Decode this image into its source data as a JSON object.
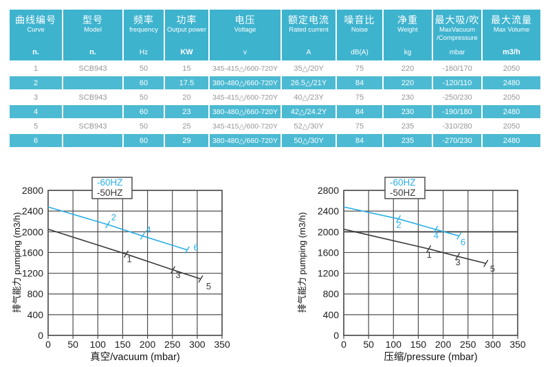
{
  "colors": {
    "table_header": "#3eb3ce",
    "table_row_cyan": "#4cbad2",
    "table_gray_text": "#969696",
    "chart_cyan": "#2aaee6",
    "chart_dark": "#3a3a3a",
    "grid": "#4d4d4d",
    "tick_text": "#1c1c1c"
  },
  "table": {
    "columns": [
      {
        "zh": "曲线编号",
        "en": "Curve",
        "unit": "n."
      },
      {
        "zh": "型号",
        "en": "Model",
        "unit": "n."
      },
      {
        "zh": "频率",
        "en": "frequency",
        "unit": "Hz"
      },
      {
        "zh": "功率",
        "en": "Output power",
        "unit": "KW"
      },
      {
        "zh": "电压",
        "en": "Voltage",
        "unit": "v"
      },
      {
        "zh": "额定电流",
        "en": "Rated current",
        "unit": "A"
      },
      {
        "zh": "噪音比",
        "en": "Noise",
        "unit": "dB(A)"
      },
      {
        "zh": "净重",
        "en": "Weight",
        "unit": "kg"
      },
      {
        "zh": "最大吸/吹",
        "en": "MaxVacuum",
        "en2": "/Compressure",
        "unit": "mbar"
      },
      {
        "zh": "最大流量",
        "en": "Max Volume",
        "unit": "m3/h"
      }
    ],
    "rows": [
      [
        "1",
        "SCB943",
        "50",
        "15",
        "345-415△/600-720Y",
        "35△/20Y",
        "75",
        "220",
        "-160/170",
        "2050"
      ],
      [
        "2",
        "",
        "60",
        "17.5",
        "380-480△/660-720Y",
        "26.5△/21Y",
        "84",
        "220",
        "-120/110",
        "2480"
      ],
      [
        "3",
        "SCB943",
        "50",
        "20",
        "345-415△/600-720Y",
        "40△/23Y",
        "75",
        "230",
        "-250/230",
        "2050"
      ],
      [
        "4",
        "",
        "60",
        "23",
        "380-480△/660-720Y",
        "42△/24.2Y",
        "84",
        "230",
        "-190/180",
        "2480"
      ],
      [
        "5",
        "SCB943",
        "50",
        "25",
        "345-415△/600-720Y",
        "52△/30Y",
        "75",
        "235",
        "-310/280",
        "2050"
      ],
      [
        "6",
        "",
        "60",
        "29",
        "380-480△/660-720Y",
        "50△/30Y",
        "84",
        "235",
        "-270/230",
        "2480"
      ]
    ]
  },
  "chart_data": [
    {
      "type": "line",
      "name": "vacuum-curve-chart",
      "xlabel": "真空/vacuum (mbar)",
      "ylabel": "排气能力 pumping (m3/h)",
      "xlim": [
        0,
        350
      ],
      "xstep": 50,
      "ylim": [
        0,
        2800
      ],
      "ystep": 400,
      "grid": true,
      "legend": [
        {
          "label": "-60HZ",
          "color_key": "chart_cyan"
        },
        {
          "label": "-50HZ",
          "color_key": "chart_dark"
        }
      ],
      "series": [
        {
          "name": "60HZ",
          "color_key": "chart_cyan",
          "points": [
            [
              0,
              2480
            ],
            [
              120,
              2140
            ],
            [
              190,
              1920
            ],
            [
              280,
              1650
            ]
          ],
          "point_labels": [
            "",
            "2",
            "4",
            "6"
          ]
        },
        {
          "name": "50HZ",
          "color_key": "chart_dark",
          "points": [
            [
              0,
              2050
            ],
            [
              157,
              1570
            ],
            [
              251,
              1265
            ],
            [
              307,
              1090
            ]
          ],
          "point_labels": [
            "",
            "1",
            "3",
            "5"
          ]
        }
      ]
    },
    {
      "type": "line",
      "name": "pressure-curve-chart",
      "xlabel": "压缩/pressure (mbar)",
      "ylabel": "排气能力 pumping (m3/h)",
      "xlim": [
        0,
        350
      ],
      "xstep": 50,
      "ylim": [
        0,
        2800
      ],
      "ystep": 400,
      "grid": true,
      "highlight_gridline": 2000,
      "legend": [
        {
          "label": "-60HZ",
          "color_key": "chart_cyan"
        },
        {
          "label": "-50HZ",
          "color_key": "chart_dark"
        }
      ],
      "series": [
        {
          "name": "60HZ",
          "color_key": "chart_cyan",
          "points": [
            [
              0,
              2480
            ],
            [
              110,
              2250
            ],
            [
              185,
              2045
            ],
            [
              232,
              1920
            ]
          ],
          "point_labels": [
            "",
            "2",
            "4",
            "6"
          ]
        },
        {
          "name": "50HZ",
          "color_key": "chart_dark",
          "points": [
            [
              0,
              2050
            ],
            [
              171,
              1670
            ],
            [
              229,
              1525
            ],
            [
              286,
              1390
            ]
          ],
          "point_labels": [
            "",
            "1",
            "3",
            "5"
          ]
        }
      ]
    }
  ]
}
